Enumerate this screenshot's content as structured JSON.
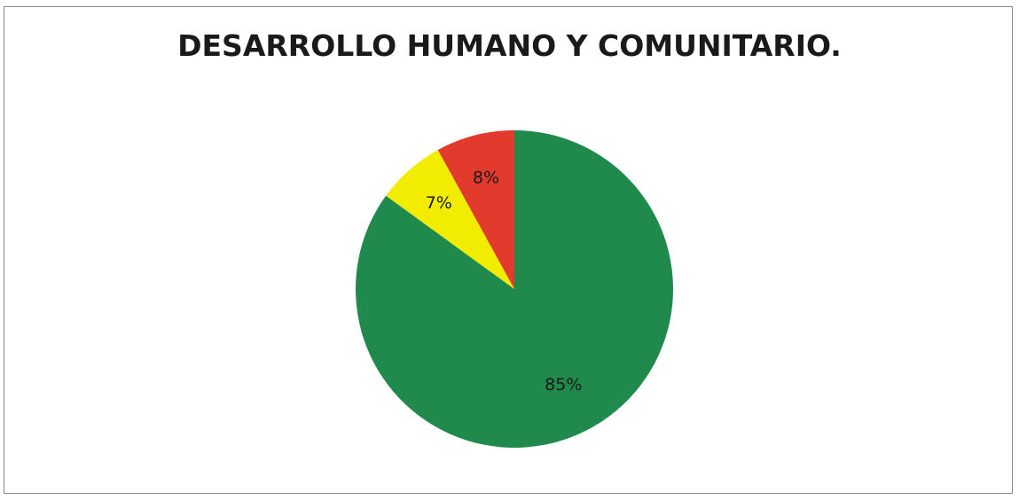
{
  "chart_data": {
    "type": "pie",
    "title": "DESARROLLO HUMANO Y COMUNITARIO.",
    "slices": [
      {
        "label": "85%",
        "value": 85,
        "color": "#1f8a4c"
      },
      {
        "label": "7%",
        "value": 7,
        "color": "#f2ec00"
      },
      {
        "label": "8%",
        "value": 8,
        "color": "#e23a2c"
      }
    ],
    "legend": "none"
  }
}
